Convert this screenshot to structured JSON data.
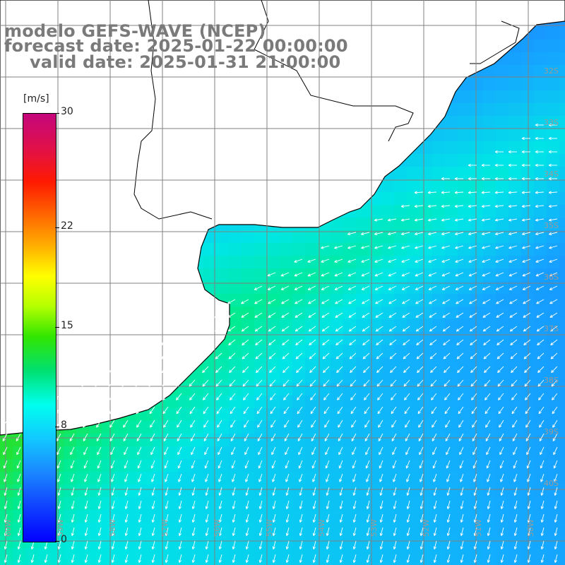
{
  "title": {
    "line1": "modelo GEFS-WAVE (NCEP)",
    "line2": "forecast date: 2025-01-22 00:00:00",
    "line3": "valid date: 2025-01-31 21:00:00"
  },
  "colorbar": {
    "units": "[m/s]",
    "min": 0,
    "max": 30,
    "labels": [
      {
        "text": "30",
        "value": 30
      },
      {
        "text": "22",
        "value": 22
      },
      {
        "text": "15",
        "value": 15
      },
      {
        "text": "8",
        "value": 8
      },
      {
        "text": "0",
        "value": 0
      }
    ]
  },
  "map": {
    "lat_labels": [
      "32S",
      "33S",
      "34S",
      "35S",
      "36S",
      "37S",
      "38S",
      "39S",
      "40S"
    ],
    "lon_labels": [
      "60W",
      "59W",
      "58W",
      "57W",
      "56W",
      "55W",
      "54W",
      "53W",
      "52W",
      "51W",
      "50W"
    ],
    "land_color": "#ffffff",
    "grid_color": "#808080",
    "arrow_color": "#ffffff"
  }
}
